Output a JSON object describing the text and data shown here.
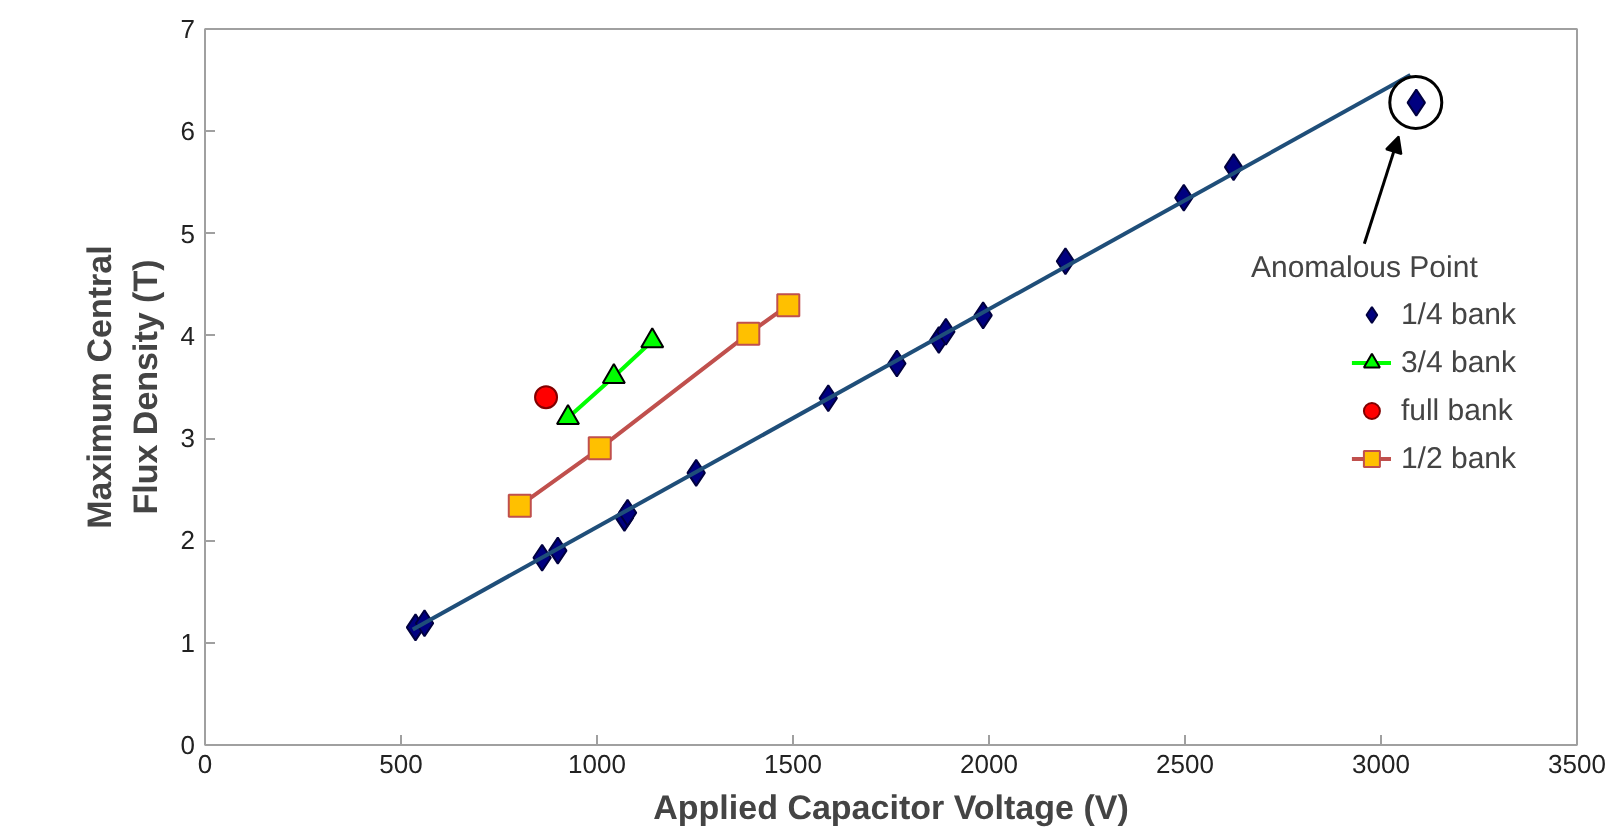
{
  "chart_data": {
    "type": "scatter",
    "xlabel": "Applied Capacitor Voltage (V)",
    "ylabel": "Maximum Central\nFlux Density (T)",
    "xlim": [
      0,
      3500
    ],
    "xticks": [
      0,
      500,
      1000,
      1500,
      2000,
      2500,
      3000,
      3500
    ],
    "ylim": [
      0,
      7
    ],
    "yticks": [
      0,
      1,
      2,
      3,
      4,
      5,
      6,
      7
    ],
    "grid": false,
    "legend": "right",
    "series": [
      {
        "name": "1/4 bank",
        "marker": "diamond",
        "color": "#000080",
        "x": [
          537,
          560,
          860,
          900,
          1070,
          1078,
          1253,
          1590,
          1765,
          1872,
          1890,
          1985,
          2195,
          2497,
          2624,
          3090
        ],
        "values": [
          1.15,
          1.19,
          1.83,
          1.9,
          2.22,
          2.27,
          2.66,
          3.39,
          3.73,
          3.96,
          4.04,
          4.2,
          4.73,
          5.35,
          5.65,
          6.28
        ]
      },
      {
        "name": "3/4 bank",
        "type": "line",
        "marker": "triangle",
        "line_style": "solid",
        "color": "#00ff00",
        "x": [
          926,
          1043,
          1141
        ],
        "values": [
          3.2,
          3.6,
          3.95
        ]
      },
      {
        "name": "full bank",
        "marker": "circle",
        "color": "#ff0000",
        "x": [
          870
        ],
        "values": [
          3.4
        ]
      },
      {
        "name": "1/2 bank",
        "type": "line",
        "marker": "square",
        "line_style": "solid",
        "color": "#ffc000",
        "x": [
          803,
          1007,
          1386,
          1488
        ],
        "values": [
          2.34,
          2.9,
          4.02,
          4.3
        ]
      },
      {
        "type": "line",
        "marker": "none",
        "line_style": "solid",
        "color": "#1f4e79",
        "x": [
          530,
          3075
        ],
        "values": [
          1.13,
          6.55
        ]
      }
    ],
    "annotations": [
      "Anomalous Point"
    ]
  }
}
